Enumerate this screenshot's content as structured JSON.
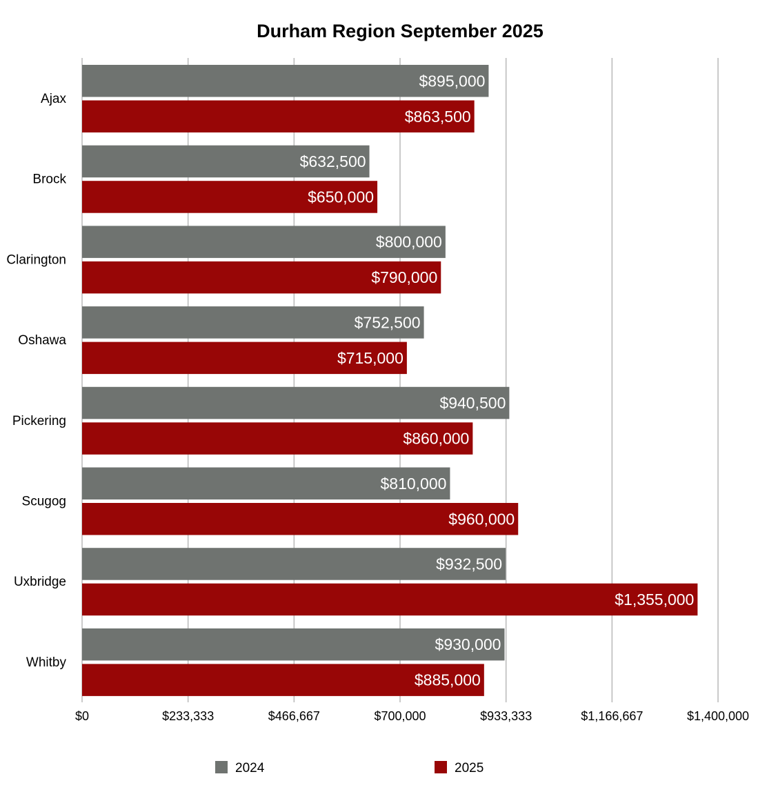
{
  "chart_data": {
    "type": "bar",
    "orientation": "horizontal",
    "title": "Durham Region September 2025",
    "xlabel": "",
    "ylabel": "",
    "categories": [
      "Ajax",
      "Brock",
      "Clarington",
      "Oshawa",
      "Pickering",
      "Scugog",
      "Uxbridge",
      "Whitby"
    ],
    "series": [
      {
        "name": "2024",
        "color": "#6f7370",
        "values": [
          895000,
          632500,
          800000,
          752500,
          940500,
          810000,
          932500,
          930000
        ],
        "data_labels": [
          "$895,000",
          "$632,500",
          "$800,000",
          "$752,500",
          "$940,500",
          "$810,000",
          "$932,500",
          "$930,000"
        ]
      },
      {
        "name": "2025",
        "color": "#980606",
        "values": [
          863500,
          650000,
          790000,
          715000,
          860000,
          960000,
          1355000,
          885000
        ],
        "data_labels": [
          "$863,500",
          "$650,000",
          "$790,000",
          "$715,000",
          "$860,000",
          "$960,000",
          "$1,355,000",
          "$885,000"
        ]
      }
    ],
    "xlim": [
      0,
      1400000
    ],
    "x_ticks": [
      0,
      233333,
      466667,
      700000,
      933333,
      1166667,
      1400000
    ],
    "x_tick_labels": [
      "$0",
      "$233,333",
      "$466,667",
      "$700,000",
      "$933,333",
      "$1,166,667",
      "$1,400,000"
    ],
    "grid": true,
    "legend_position": "bottom"
  }
}
